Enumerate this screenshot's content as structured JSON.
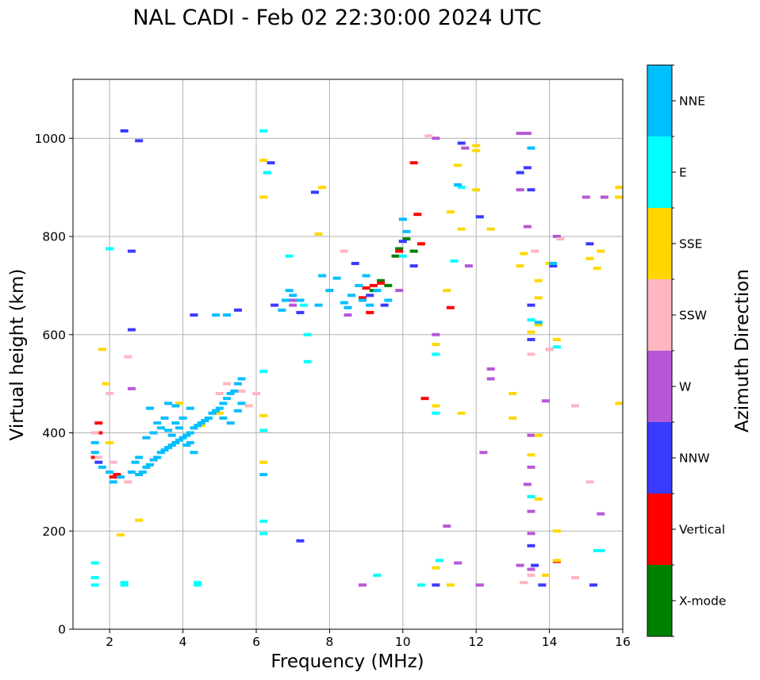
{
  "chart_data": {
    "type": "scatter",
    "title": "NAL CADI - Feb 02 22:30:00 2024 UTC",
    "xlabel": "Frequency (MHz)",
    "ylabel": "Virtual height (km)",
    "xlim": [
      1,
      16
    ],
    "ylim": [
      0,
      1120
    ],
    "xticks": [
      2,
      4,
      6,
      8,
      10,
      12,
      14,
      16
    ],
    "yticks": [
      0,
      200,
      400,
      600,
      800,
      1000
    ],
    "grid": true,
    "colorbar": {
      "label": "Azimuth Direction",
      "categories": [
        {
          "name": "X-mode",
          "color": "#008000"
        },
        {
          "name": "Vertical",
          "color": "#ff0000"
        },
        {
          "name": "NNW",
          "color": "#3a3aff"
        },
        {
          "name": "W",
          "color": "#b658d6"
        },
        {
          "name": "SSW",
          "color": "#ffb6c1"
        },
        {
          "name": "SSE",
          "color": "#ffd700"
        },
        {
          "name": "E",
          "color": "#00ffff"
        },
        {
          "name": "NNE",
          "color": "#00bfff"
        }
      ]
    },
    "series": [
      {
        "name": "X-mode",
        "points": [
          [
            9.4,
            710
          ],
          [
            9.6,
            700
          ],
          [
            9.9,
            775
          ],
          [
            10.1,
            795
          ],
          [
            10.3,
            770
          ],
          [
            9.8,
            760
          ],
          [
            9.2,
            690
          ]
        ]
      },
      {
        "name": "Vertical",
        "points": [
          [
            1.7,
            420
          ],
          [
            1.7,
            400
          ],
          [
            1.6,
            350
          ],
          [
            2.1,
            310
          ],
          [
            2.2,
            315
          ],
          [
            9.1,
            645
          ],
          [
            9.2,
            700
          ],
          [
            9.4,
            705
          ],
          [
            9.9,
            770
          ],
          [
            10.3,
            950
          ],
          [
            10.4,
            845
          ],
          [
            10.6,
            470
          ],
          [
            10.5,
            785
          ],
          [
            11.3,
            655
          ],
          [
            14.2,
            138
          ],
          [
            9.0,
            695
          ],
          [
            8.9,
            675
          ]
        ]
      },
      {
        "name": "NNW",
        "points": [
          [
            2.4,
            1015
          ],
          [
            2.8,
            995
          ],
          [
            2.6,
            770
          ],
          [
            2.6,
            610
          ],
          [
            1.7,
            340
          ],
          [
            6.3,
            930
          ],
          [
            6.4,
            950
          ],
          [
            6.5,
            660
          ],
          [
            7.2,
            645
          ],
          [
            7.6,
            890
          ],
          [
            8.7,
            745
          ],
          [
            9.1,
            680
          ],
          [
            9.5,
            660
          ],
          [
            10.0,
            790
          ],
          [
            10.3,
            740
          ],
          [
            11.6,
            990
          ],
          [
            12.1,
            840
          ],
          [
            13.2,
            930
          ],
          [
            13.4,
            940
          ],
          [
            13.5,
            590
          ],
          [
            13.5,
            660
          ],
          [
            13.5,
            170
          ],
          [
            13.6,
            130
          ],
          [
            13.8,
            90
          ],
          [
            15.1,
            785
          ],
          [
            15.2,
            90
          ],
          [
            10.9,
            90
          ],
          [
            7.2,
            180
          ],
          [
            4.3,
            640
          ],
          [
            5.5,
            650
          ],
          [
            14.1,
            740
          ],
          [
            13.5,
            895
          ]
        ]
      },
      {
        "name": "W",
        "points": [
          [
            2.6,
            490
          ],
          [
            8.9,
            90
          ],
          [
            10.9,
            1000
          ],
          [
            11.7,
            980
          ],
          [
            11.8,
            740
          ],
          [
            12.4,
            530
          ],
          [
            12.4,
            510
          ],
          [
            12.2,
            360
          ],
          [
            12.1,
            90
          ],
          [
            13.2,
            1010
          ],
          [
            13.4,
            1010
          ],
          [
            13.2,
            895
          ],
          [
            13.4,
            820
          ],
          [
            13.5,
            395
          ],
          [
            13.5,
            330
          ],
          [
            13.4,
            295
          ],
          [
            13.5,
            240
          ],
          [
            13.5,
            195
          ],
          [
            13.5,
            122
          ],
          [
            13.2,
            130
          ],
          [
            13.9,
            465
          ],
          [
            14.0,
            570
          ],
          [
            14.2,
            800
          ],
          [
            15.0,
            880
          ],
          [
            15.5,
            880
          ],
          [
            15.4,
            235
          ],
          [
            11.2,
            210
          ],
          [
            11.5,
            135
          ],
          [
            8.5,
            640
          ],
          [
            7.0,
            670
          ],
          [
            7.0,
            660
          ],
          [
            10.9,
            600
          ],
          [
            9.9,
            690
          ]
        ]
      },
      {
        "name": "SSW",
        "points": [
          [
            1.6,
            400
          ],
          [
            1.7,
            350
          ],
          [
            2.0,
            480
          ],
          [
            2.1,
            340
          ],
          [
            2.5,
            555
          ],
          [
            2.5,
            300
          ],
          [
            5.0,
            480
          ],
          [
            5.2,
            500
          ],
          [
            5.6,
            485
          ],
          [
            5.8,
            455
          ],
          [
            6.0,
            480
          ],
          [
            8.4,
            770
          ],
          [
            10.7,
            1005
          ],
          [
            13.5,
            560
          ],
          [
            14.0,
            570
          ],
          [
            14.3,
            795
          ],
          [
            14.7,
            455
          ],
          [
            15.1,
            300
          ],
          [
            14.7,
            105
          ],
          [
            13.3,
            95
          ],
          [
            13.5,
            110
          ],
          [
            13.6,
            770
          ]
        ]
      },
      {
        "name": "SSE",
        "points": [
          [
            1.8,
            570
          ],
          [
            1.9,
            500
          ],
          [
            2.0,
            380
          ],
          [
            2.3,
            192
          ],
          [
            2.8,
            222
          ],
          [
            6.2,
            955
          ],
          [
            6.2,
            880
          ],
          [
            6.2,
            435
          ],
          [
            6.2,
            340
          ],
          [
            7.8,
            900
          ],
          [
            7.7,
            805
          ],
          [
            10.9,
            580
          ],
          [
            10.9,
            455
          ],
          [
            11.2,
            690
          ],
          [
            11.3,
            850
          ],
          [
            11.5,
            945
          ],
          [
            11.6,
            440
          ],
          [
            11.6,
            815
          ],
          [
            12.0,
            985
          ],
          [
            12.0,
            975
          ],
          [
            12.0,
            895
          ],
          [
            12.4,
            815
          ],
          [
            13.0,
            480
          ],
          [
            13.0,
            430
          ],
          [
            13.2,
            740
          ],
          [
            13.3,
            765
          ],
          [
            13.5,
            605
          ],
          [
            13.7,
            710
          ],
          [
            13.7,
            675
          ],
          [
            13.7,
            620
          ],
          [
            13.7,
            265
          ],
          [
            13.7,
            395
          ],
          [
            14.0,
            745
          ],
          [
            14.2,
            590
          ],
          [
            14.2,
            200
          ],
          [
            14.2,
            140
          ],
          [
            15.1,
            755
          ],
          [
            15.3,
            735
          ],
          [
            15.4,
            770
          ],
          [
            15.9,
            900
          ],
          [
            15.9,
            880
          ],
          [
            15.9,
            460
          ],
          [
            13.5,
            355
          ],
          [
            11.3,
            90
          ],
          [
            10.9,
            125
          ],
          [
            13.9,
            110
          ],
          [
            3.9,
            460
          ],
          [
            4.5,
            415
          ],
          [
            5.0,
            440
          ]
        ]
      },
      {
        "name": "E",
        "points": [
          [
            1.6,
            135
          ],
          [
            1.6,
            105
          ],
          [
            1.6,
            90
          ],
          [
            2.0,
            775
          ],
          [
            2.4,
            95
          ],
          [
            2.4,
            90
          ],
          [
            4.4,
            95
          ],
          [
            4.4,
            90
          ],
          [
            6.2,
            525
          ],
          [
            6.2,
            405
          ],
          [
            6.2,
            220
          ],
          [
            6.2,
            195
          ],
          [
            6.9,
            760
          ],
          [
            7.4,
            600
          ],
          [
            7.4,
            545
          ],
          [
            9.3,
            110
          ],
          [
            10.5,
            90
          ],
          [
            10.9,
            440
          ],
          [
            10.9,
            560
          ],
          [
            11.0,
            140
          ],
          [
            11.4,
            750
          ],
          [
            11.6,
            900
          ],
          [
            13.5,
            270
          ],
          [
            13.5,
            630
          ],
          [
            14.2,
            575
          ],
          [
            15.3,
            160
          ],
          [
            15.4,
            160
          ],
          [
            10.0,
            760
          ],
          [
            6.2,
            1015
          ],
          [
            6.3,
            930
          ],
          [
            7.3,
            660
          ]
        ]
      },
      {
        "name": "NNE",
        "points": [
          [
            1.6,
            380
          ],
          [
            1.6,
            360
          ],
          [
            1.8,
            330
          ],
          [
            2.0,
            320
          ],
          [
            2.1,
            300
          ],
          [
            2.3,
            310
          ],
          [
            2.6,
            320
          ],
          [
            2.8,
            315
          ],
          [
            2.9,
            320
          ],
          [
            3.0,
            330
          ],
          [
            3.1,
            335
          ],
          [
            3.2,
            345
          ],
          [
            3.3,
            350
          ],
          [
            3.4,
            360
          ],
          [
            3.5,
            365
          ],
          [
            3.6,
            370
          ],
          [
            3.7,
            375
          ],
          [
            3.8,
            380
          ],
          [
            3.9,
            385
          ],
          [
            4.0,
            390
          ],
          [
            4.1,
            395
          ],
          [
            4.2,
            400
          ],
          [
            4.3,
            410
          ],
          [
            4.4,
            415
          ],
          [
            4.5,
            420
          ],
          [
            4.6,
            425
          ],
          [
            4.7,
            430
          ],
          [
            4.8,
            440
          ],
          [
            4.9,
            445
          ],
          [
            5.0,
            450
          ],
          [
            5.1,
            460
          ],
          [
            5.2,
            470
          ],
          [
            5.3,
            480
          ],
          [
            5.4,
            485
          ],
          [
            5.5,
            500
          ],
          [
            5.6,
            510
          ],
          [
            3.0,
            390
          ],
          [
            3.2,
            400
          ],
          [
            3.3,
            420
          ],
          [
            3.4,
            410
          ],
          [
            3.5,
            430
          ],
          [
            3.6,
            405
          ],
          [
            3.7,
            395
          ],
          [
            3.8,
            420
          ],
          [
            3.9,
            410
          ],
          [
            4.0,
            430
          ],
          [
            4.1,
            375
          ],
          [
            4.2,
            380
          ],
          [
            4.3,
            360
          ],
          [
            3.1,
            450
          ],
          [
            3.6,
            460
          ],
          [
            3.8,
            455
          ],
          [
            4.2,
            450
          ],
          [
            5.1,
            430
          ],
          [
            5.3,
            420
          ],
          [
            5.5,
            445
          ],
          [
            5.6,
            460
          ],
          [
            2.7,
            340
          ],
          [
            2.8,
            350
          ],
          [
            6.2,
            315
          ],
          [
            6.7,
            650
          ],
          [
            6.8,
            670
          ],
          [
            6.9,
            690
          ],
          [
            7.0,
            680
          ],
          [
            7.2,
            670
          ],
          [
            7.7,
            660
          ],
          [
            7.8,
            720
          ],
          [
            8.2,
            715
          ],
          [
            8.4,
            665
          ],
          [
            8.6,
            680
          ],
          [
            8.8,
            700
          ],
          [
            8.9,
            670
          ],
          [
            9.0,
            720
          ],
          [
            9.1,
            660
          ],
          [
            9.3,
            690
          ],
          [
            9.6,
            670
          ],
          [
            10.0,
            835
          ],
          [
            10.1,
            810
          ],
          [
            11.5,
            905
          ],
          [
            13.5,
            980
          ],
          [
            13.7,
            625
          ],
          [
            14.1,
            745
          ],
          [
            4.9,
            640
          ],
          [
            5.2,
            640
          ],
          [
            8.0,
            690
          ],
          [
            8.5,
            655
          ]
        ]
      }
    ]
  }
}
